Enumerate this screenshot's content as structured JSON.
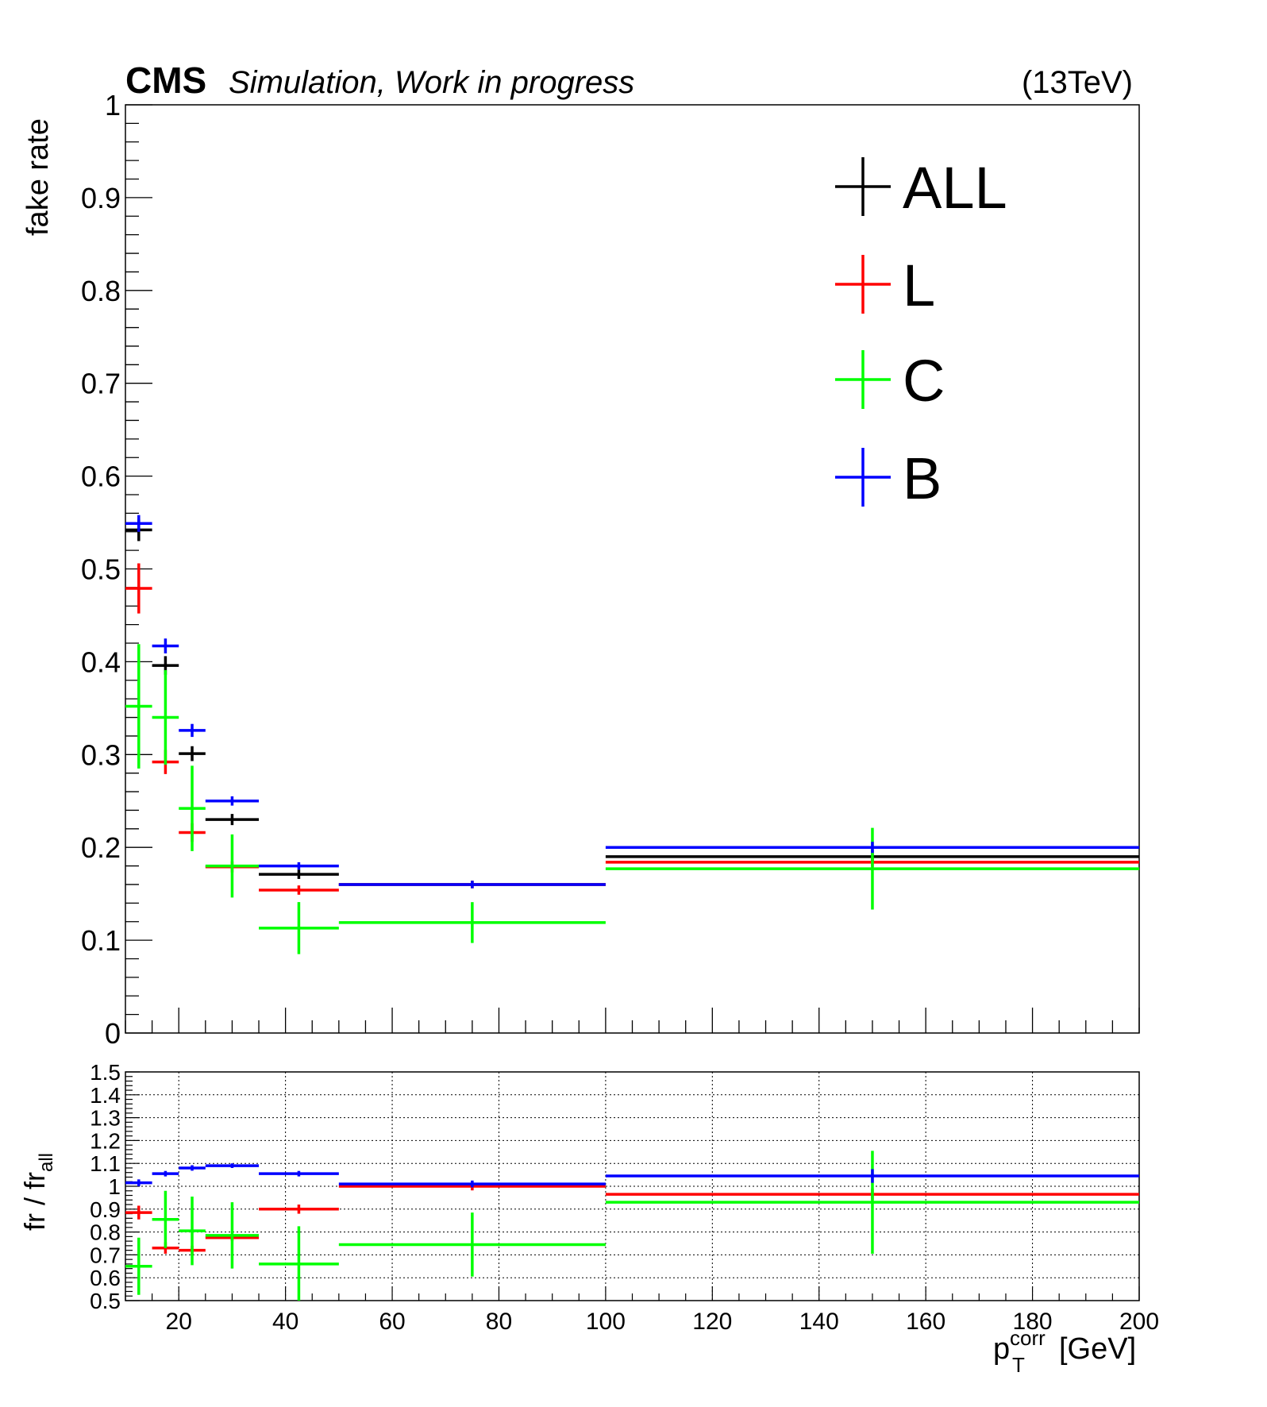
{
  "header": {
    "brand": "CMS",
    "subtitle": "Simulation, Work in progress",
    "energy": "(13TeV)"
  },
  "legend": {
    "position": "top-right",
    "entries": [
      {
        "label": "ALL",
        "color": "#000000"
      },
      {
        "label": "L",
        "color": "#ff0000"
      },
      {
        "label": "C",
        "color": "#00ff00"
      },
      {
        "label": "B",
        "color": "#0000ff"
      }
    ]
  },
  "xaxis": {
    "label_main": "p",
    "label_sup": "corr",
    "label_sub": "T",
    "label_unit": "[GeV]"
  },
  "chart_data": [
    {
      "type": "scatter",
      "name": "fake rate",
      "ylabel": "fake rate",
      "xlim": [
        10,
        200
      ],
      "ylim": [
        0,
        1
      ],
      "grid": false,
      "y_ticks": [
        "0",
        "0.1",
        "0.2",
        "0.3",
        "0.4",
        "0.5",
        "0.6",
        "0.7",
        "0.8",
        "0.9",
        "1"
      ],
      "bins": [
        [
          10,
          15
        ],
        [
          15,
          20
        ],
        [
          20,
          25
        ],
        [
          25,
          35
        ],
        [
          35,
          50
        ],
        [
          50,
          100
        ],
        [
          100,
          200
        ]
      ],
      "series": [
        {
          "name": "ALL",
          "color": "#000000",
          "values": [
            0.542,
            0.396,
            0.301,
            0.23,
            0.171,
            0.16,
            0.19
          ],
          "errors": [
            0.012,
            0.01,
            0.008,
            0.006,
            0.005,
            0.004,
            0.007
          ]
        },
        {
          "name": "L",
          "color": "#ff0000",
          "values": [
            0.479,
            0.292,
            0.216,
            0.179,
            0.154,
            0.16,
            0.184
          ],
          "errors": [
            0.027,
            0.013,
            0.01,
            0.006,
            0.005,
            0.004,
            0.005
          ]
        },
        {
          "name": "C",
          "color": "#00ff00",
          "values": [
            0.352,
            0.34,
            0.242,
            0.18,
            0.113,
            0.119,
            0.177
          ],
          "errors": [
            0.067,
            0.051,
            0.046,
            0.034,
            0.028,
            0.022,
            0.044
          ]
        },
        {
          "name": "B",
          "color": "#0000ff",
          "values": [
            0.549,
            0.417,
            0.326,
            0.25,
            0.18,
            0.16,
            0.2
          ],
          "errors": [
            0.009,
            0.008,
            0.007,
            0.005,
            0.004,
            0.004,
            0.006
          ]
        }
      ]
    },
    {
      "type": "scatter",
      "name": "ratio",
      "ylabel": "fr / fr_all",
      "xlabel": "p_T^corr [GeV]",
      "xlim": [
        10,
        200
      ],
      "ylim": [
        0.5,
        1.5
      ],
      "grid": true,
      "x_ticks": [
        "20",
        "40",
        "60",
        "80",
        "100",
        "120",
        "140",
        "160",
        "180",
        "200"
      ],
      "y_ticks": [
        "0.5",
        "0.6",
        "0.7",
        "0.8",
        "0.9",
        "1",
        "1.1",
        "1.2",
        "1.3",
        "1.4",
        "1.5"
      ],
      "bins": [
        [
          10,
          15
        ],
        [
          15,
          20
        ],
        [
          20,
          25
        ],
        [
          25,
          35
        ],
        [
          35,
          50
        ],
        [
          50,
          100
        ],
        [
          100,
          200
        ]
      ],
      "series": [
        {
          "name": "L",
          "color": "#ff0000",
          "values": [
            0.885,
            0.73,
            0.72,
            0.775,
            0.9,
            1.0,
            0.965
          ],
          "errors": [
            0.03,
            0.025,
            0.02,
            0.015,
            0.02,
            0.018,
            0.025
          ]
        },
        {
          "name": "C",
          "color": "#00ff00",
          "values": [
            0.65,
            0.855,
            0.805,
            0.785,
            0.66,
            0.745,
            0.93
          ],
          "errors": [
            0.125,
            0.125,
            0.15,
            0.145,
            0.165,
            0.14,
            0.225
          ]
        },
        {
          "name": "B",
          "color": "#0000ff",
          "values": [
            1.015,
            1.055,
            1.08,
            1.09,
            1.055,
            1.01,
            1.045
          ],
          "errors": [
            0.015,
            0.012,
            0.012,
            0.01,
            0.012,
            0.015,
            0.03
          ]
        }
      ]
    }
  ]
}
